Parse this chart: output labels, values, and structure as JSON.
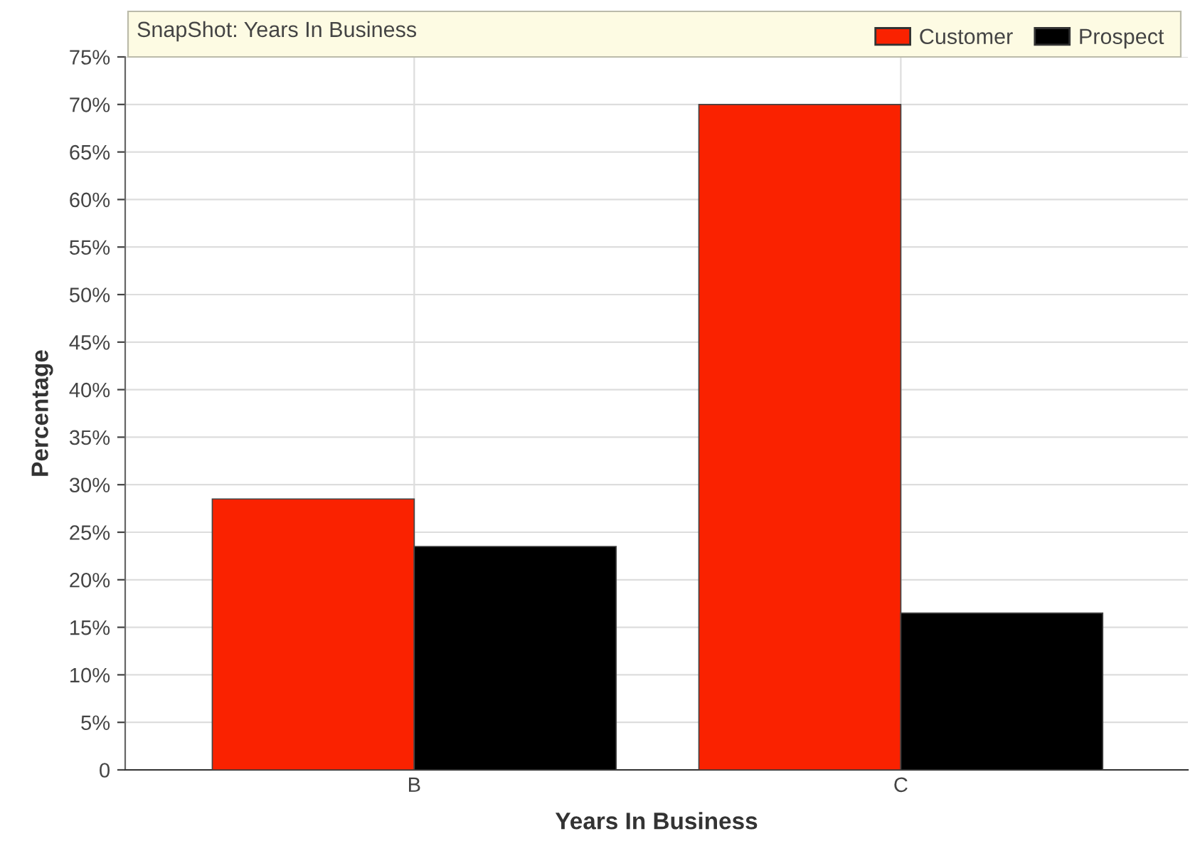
{
  "chart_data": {
    "type": "bar",
    "title": "SnapShot: Years In Business",
    "xlabel": "Years In Business",
    "ylabel": "Percentage",
    "categories": [
      "B",
      "C"
    ],
    "series": [
      {
        "name": "Customer",
        "color": "#fa2200",
        "values": [
          28.5,
          70
        ]
      },
      {
        "name": "Prospect",
        "color": "#000000",
        "values": [
          23.5,
          16.5
        ]
      }
    ],
    "ylim": [
      0,
      75
    ],
    "yticks": [
      {
        "value": 0,
        "label": "0"
      },
      {
        "value": 5,
        "label": "5%"
      },
      {
        "value": 10,
        "label": "10%"
      },
      {
        "value": 15,
        "label": "15%"
      },
      {
        "value": 20,
        "label": "20%"
      },
      {
        "value": 25,
        "label": "25%"
      },
      {
        "value": 30,
        "label": "30%"
      },
      {
        "value": 35,
        "label": "35%"
      },
      {
        "value": 40,
        "label": "40%"
      },
      {
        "value": 45,
        "label": "45%"
      },
      {
        "value": 50,
        "label": "50%"
      },
      {
        "value": 55,
        "label": "55%"
      },
      {
        "value": 60,
        "label": "60%"
      },
      {
        "value": 65,
        "label": "65%"
      },
      {
        "value": 70,
        "label": "70%"
      },
      {
        "value": 75,
        "label": "75%"
      }
    ],
    "grid": true,
    "legend": "top right"
  }
}
